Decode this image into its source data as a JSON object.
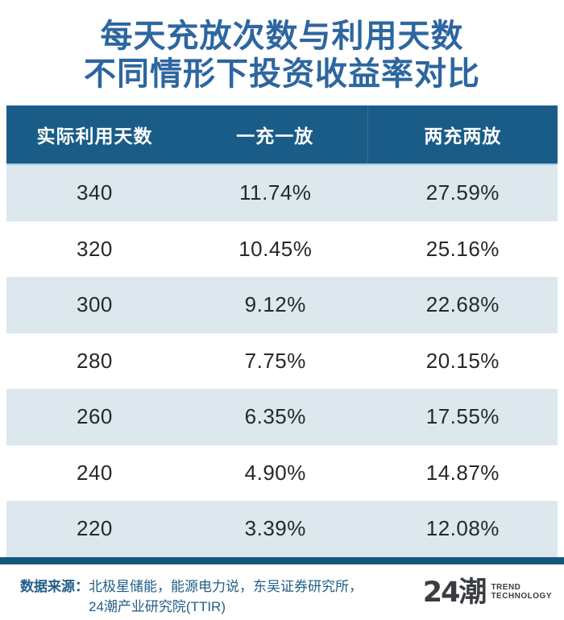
{
  "title": {
    "line1": "每天充放次数与利用天数",
    "line2": "不同情形下投资收益率对比"
  },
  "chart_data": {
    "type": "table",
    "title": "每天充放次数与利用天数不同情形下投资收益率对比",
    "columns": [
      "实际利用天数",
      "一充一放",
      "两充两放"
    ],
    "rows": [
      [
        "340",
        "11.74%",
        "27.59%"
      ],
      [
        "320",
        "10.45%",
        "25.16%"
      ],
      [
        "300",
        "9.12%",
        "22.68%"
      ],
      [
        "280",
        "7.75%",
        "20.15%"
      ],
      [
        "260",
        "6.35%",
        "17.55%"
      ],
      [
        "240",
        "4.90%",
        "14.87%"
      ],
      [
        "220",
        "3.39%",
        "12.08%"
      ]
    ]
  },
  "footer": {
    "source_label": "数据来源：",
    "source_line1": "北极星储能，能源电力说，东吴证券研究所，",
    "source_line2": "24潮产业研究院(TTIR)",
    "logo_text": "24潮",
    "logo_sub1": "TREND",
    "logo_sub2": "TECHNOLOGY"
  },
  "colors": {
    "title_blue": "#2d66a0",
    "header_bg": "#1a5c88",
    "row_alt_bg": "#dce7ee",
    "accent_bar": "#15587f",
    "footer_text": "#215e88",
    "logo_dark": "#393c41"
  }
}
